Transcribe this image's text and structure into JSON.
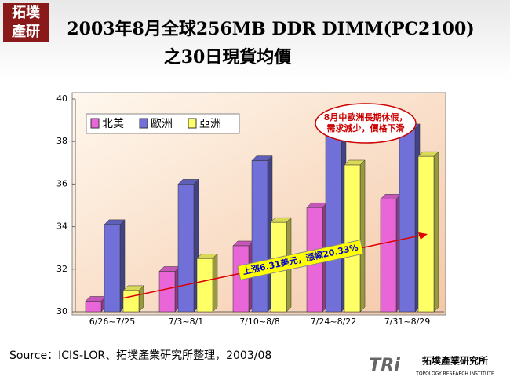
{
  "chart_data": {
    "type": "bar",
    "title": "2003年8月全球256MB DDR DIMM(PC2100)",
    "subtitle": "之30日現貨均價",
    "categories": [
      "6/26~7/25",
      "7/3~8/1",
      "7/10~8/8",
      "7/24~8/22",
      "7/31~8/29"
    ],
    "series": [
      {
        "name": "北美",
        "color": "#e866d8",
        "values": [
          30.5,
          31.9,
          33.1,
          34.9,
          35.3
        ]
      },
      {
        "name": "歐洲",
        "color": "#7070d8",
        "values": [
          34.1,
          36.0,
          37.1,
          39.0,
          38.6
        ]
      },
      {
        "name": "亞洲",
        "color": "#ffff66",
        "values": [
          31.0,
          32.5,
          34.2,
          36.9,
          37.3
        ]
      }
    ],
    "ylim": [
      30,
      40
    ],
    "yticks": [
      30,
      32,
      34,
      36,
      38,
      40
    ],
    "legend": "top-left",
    "annotations": [
      "8月中歐洲長期休假，需求減少，價格下滑",
      "上漲6.31美元，漲幅20.33%"
    ]
  },
  "slide": {
    "logo": [
      "拓墣",
      "產研"
    ],
    "source": "Source：ICIS-LOR、拓墣產業研究所整理，2003/08",
    "brand": "TRi",
    "brand_name": "拓墣產業研究所",
    "brand_en": "TOPOLOGY RESEARCH INSTITUTE"
  }
}
